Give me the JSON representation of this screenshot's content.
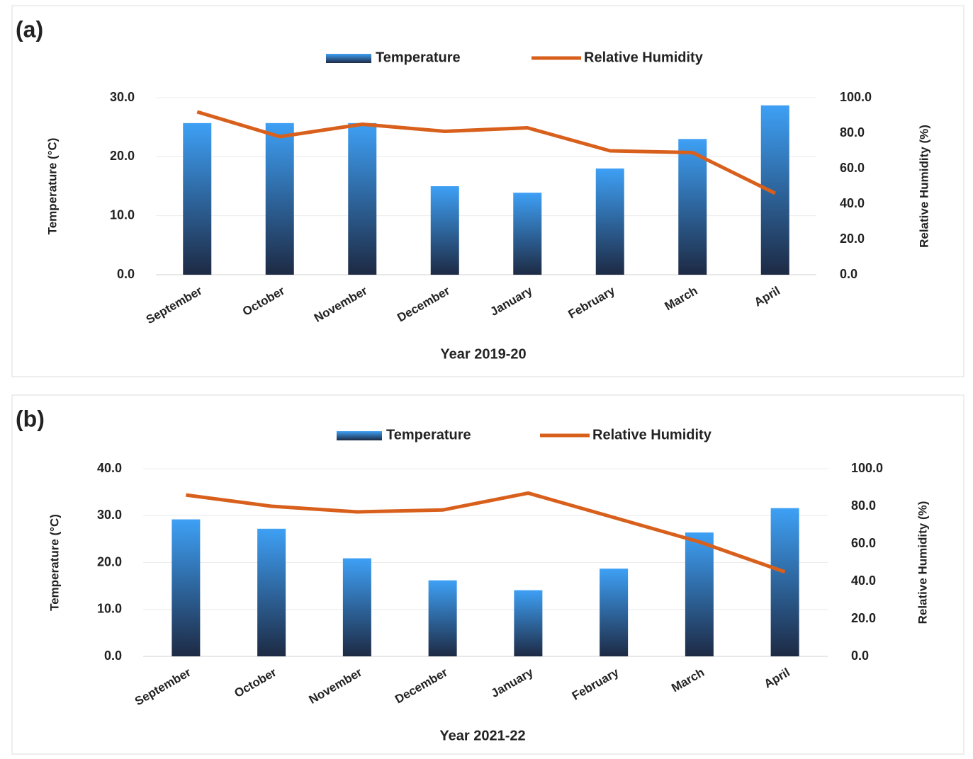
{
  "chart_data": [
    {
      "type": "bar-line",
      "panel_label": "(a)",
      "categories": [
        "September",
        "October",
        "November",
        "December",
        "January",
        "February",
        "March",
        "April"
      ],
      "series": [
        {
          "name": "Temperature",
          "color": "#3ea0f5",
          "values": [
            25.7,
            25.7,
            25.7,
            15.0,
            13.9,
            18.0,
            23.0,
            28.7
          ]
        },
        {
          "name": "Relative Humidity",
          "color": "#d8601c",
          "axis": "y2",
          "values": [
            92,
            78,
            85,
            81,
            83,
            70,
            69,
            46
          ]
        }
      ],
      "x_label": "Year 2019-20",
      "y_label": "Temperature (°C)",
      "y2_label": "Relative Humidity (%)",
      "ylim": [
        0,
        30
      ],
      "yticks": [
        {
          "value": 0,
          "label": "0.0"
        },
        {
          "value": 10,
          "label": "10.0"
        },
        {
          "value": 20,
          "label": "20.0"
        },
        {
          "value": 30,
          "label": "30.0"
        }
      ],
      "y2lim": [
        0,
        100
      ],
      "y2ticks": [
        {
          "value": 0,
          "label": "0.0"
        },
        {
          "value": 20,
          "label": "20.0"
        },
        {
          "value": 40,
          "label": "40.0"
        },
        {
          "value": 60,
          "label": "60.0"
        },
        {
          "value": 80,
          "label": "80.0"
        },
        {
          "value": 100,
          "label": "100.0"
        }
      ],
      "grid": true
    },
    {
      "type": "bar-line",
      "panel_label": "(b)",
      "categories": [
        "September",
        "October",
        "November",
        "December",
        "January",
        "February",
        "March",
        "April"
      ],
      "series": [
        {
          "name": "Temperature",
          "color": "#3ea0f5",
          "values": [
            29.2,
            27.2,
            20.9,
            16.2,
            14.1,
            18.7,
            26.4,
            31.6
          ]
        },
        {
          "name": "Relative Humidity",
          "color": "#d8601c",
          "axis": "y2",
          "values": [
            86,
            80,
            77,
            78,
            87,
            74,
            61,
            45
          ]
        }
      ],
      "x_label": "Year 2021-22",
      "y_label": "Temperature (°C)",
      "y2_label": "Relative Humidity (%)",
      "ylim": [
        0,
        40
      ],
      "yticks": [
        {
          "value": 0,
          "label": "0.0"
        },
        {
          "value": 10,
          "label": "10.0"
        },
        {
          "value": 20,
          "label": "20.0"
        },
        {
          "value": 30,
          "label": "30.0"
        },
        {
          "value": 40,
          "label": "40.0"
        }
      ],
      "y2lim": [
        0,
        100
      ],
      "y2ticks": [
        {
          "value": 0,
          "label": "0.0"
        },
        {
          "value": 20,
          "label": "20.0"
        },
        {
          "value": 40,
          "label": "40.0"
        },
        {
          "value": 60,
          "label": "60.0"
        },
        {
          "value": 80,
          "label": "80.0"
        },
        {
          "value": 100,
          "label": "100.0"
        }
      ],
      "grid": true
    }
  ]
}
